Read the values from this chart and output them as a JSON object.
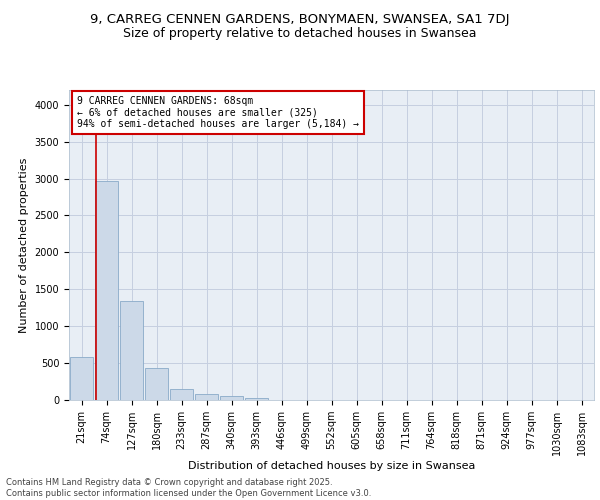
{
  "title1": "9, CARREG CENNEN GARDENS, BONYMAEN, SWANSEA, SA1 7DJ",
  "title2": "Size of property relative to detached houses in Swansea",
  "xlabel": "Distribution of detached houses by size in Swansea",
  "ylabel": "Number of detached properties",
  "categories": [
    "21sqm",
    "74sqm",
    "127sqm",
    "180sqm",
    "233sqm",
    "287sqm",
    "340sqm",
    "393sqm",
    "446sqm",
    "499sqm",
    "552sqm",
    "605sqm",
    "658sqm",
    "711sqm",
    "764sqm",
    "818sqm",
    "871sqm",
    "924sqm",
    "977sqm",
    "1030sqm",
    "1083sqm"
  ],
  "values": [
    580,
    2970,
    1340,
    430,
    155,
    80,
    55,
    30,
    5,
    0,
    0,
    0,
    0,
    0,
    0,
    0,
    0,
    0,
    0,
    0,
    0
  ],
  "bar_color": "#ccd9e8",
  "bar_edge_color": "#8aaac8",
  "grid_color": "#c5cfe0",
  "background_color": "#e8eef5",
  "annotation_text": "9 CARREG CENNEN GARDENS: 68sqm\n← 6% of detached houses are smaller (325)\n94% of semi-detached houses are larger (5,184) →",
  "annotation_box_color": "#ffffff",
  "annotation_box_edge": "#cc0000",
  "vline_color": "#cc0000",
  "ylim": [
    0,
    4200
  ],
  "yticks": [
    0,
    500,
    1000,
    1500,
    2000,
    2500,
    3000,
    3500,
    4000
  ],
  "footer": "Contains HM Land Registry data © Crown copyright and database right 2025.\nContains public sector information licensed under the Open Government Licence v3.0.",
  "title_fontsize": 9.5,
  "subtitle_fontsize": 9,
  "tick_fontsize": 7,
  "ylabel_fontsize": 8,
  "xlabel_fontsize": 8,
  "annotation_fontsize": 7,
  "footer_fontsize": 6
}
